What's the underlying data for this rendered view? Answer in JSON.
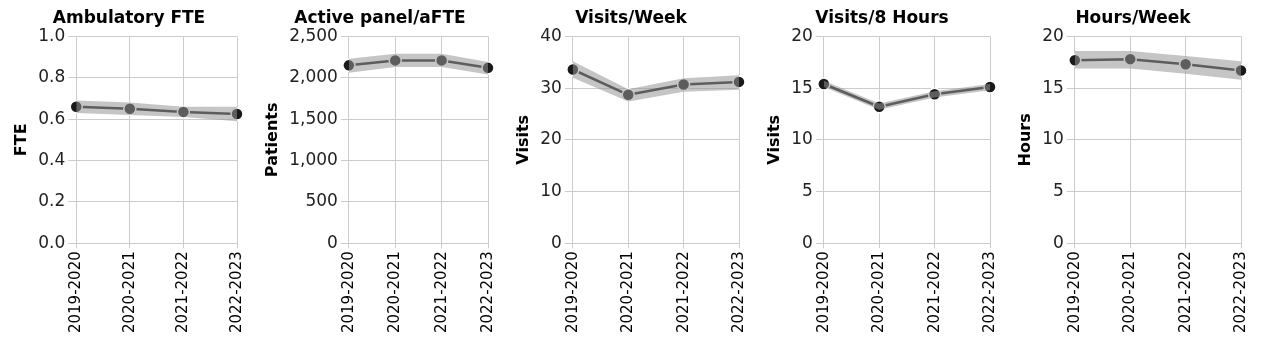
{
  "chart_data": [
    {
      "type": "line",
      "title": "Ambulatory FTE",
      "ylabel": "FTE",
      "categories": [
        "2019-2020",
        "2020-2021",
        "2021-2022",
        "2022-2023"
      ],
      "series": [
        {
          "color": "#1a1a1a",
          "values": [
            0.66,
            0.65,
            0.635,
            0.625
          ],
          "lower": [
            0.63,
            0.62,
            0.61,
            0.59
          ],
          "upper": [
            0.69,
            0.68,
            0.66,
            0.66
          ]
        }
      ],
      "ylim": [
        0,
        1
      ],
      "yticks": [
        {
          "value": 0,
          "label": "0.0"
        },
        {
          "value": 0.2,
          "label": "0.2"
        },
        {
          "value": 0.4,
          "label": "0.4"
        },
        {
          "value": 0.6,
          "label": "0.6"
        },
        {
          "value": 0.8,
          "label": "0.8"
        },
        {
          "value": 1,
          "label": "1.0"
        }
      ],
      "grid": true,
      "legend": false,
      "marker": "circle",
      "line_style": "solid"
    },
    {
      "type": "line",
      "title": "Active panel/aFTE",
      "ylabel": "Patients",
      "categories": [
        "2019-2020",
        "2020-2021",
        "2021-2022",
        "2022-2023"
      ],
      "series": [
        {
          "color": "#1a1a1a",
          "values": [
            2150,
            2210,
            2210,
            2120
          ],
          "lower": [
            2060,
            2130,
            2130,
            2040
          ],
          "upper": [
            2230,
            2290,
            2290,
            2190
          ]
        }
      ],
      "ylim": [
        0,
        2500
      ],
      "yticks": [
        0,
        500,
        {
          "value": 1000,
          "label": "1,000"
        },
        {
          "value": 1500,
          "label": "1,500"
        },
        {
          "value": 2000,
          "label": "2,000"
        },
        {
          "value": 2500,
          "label": "2,500"
        }
      ],
      "grid": true,
      "legend": false,
      "marker": "circle",
      "line_style": "solid"
    },
    {
      "type": "line",
      "title": "Visits/Week",
      "ylabel": "Visits",
      "categories": [
        "2019-2020",
        "2020-2021",
        "2021-2022",
        "2022-2023"
      ],
      "series": [
        {
          "color": "#1a1a1a",
          "values": [
            33.6,
            28.7,
            30.7,
            31.2
          ],
          "lower": [
            32,
            27.4,
            29.3,
            29.7
          ],
          "upper": [
            35.2,
            29.8,
            31.9,
            32.5
          ]
        }
      ],
      "ylim": [
        0,
        40
      ],
      "yticks": [
        0,
        10,
        20,
        30,
        40
      ],
      "grid": true,
      "legend": false,
      "marker": "circle",
      "line_style": "solid"
    },
    {
      "type": "line",
      "title": "Visits/8 Hours",
      "ylabel": "Visits",
      "categories": [
        "2019-2020",
        "2020-2021",
        "2021-2022",
        "2022-2023"
      ],
      "series": [
        {
          "color": "#1a1a1a",
          "values": [
            15.4,
            13.2,
            14.4,
            15.1
          ],
          "lower": [
            15.1,
            12.9,
            14.1,
            14.8
          ],
          "upper": [
            15.7,
            13.5,
            14.7,
            15.4
          ]
        }
      ],
      "ylim": [
        0,
        20
      ],
      "yticks": [
        0,
        5,
        10,
        15,
        20
      ],
      "grid": true,
      "legend": false,
      "marker": "circle",
      "line_style": "solid"
    },
    {
      "type": "line",
      "title": "Hours/Week",
      "ylabel": "Hours",
      "categories": [
        "2019-2020",
        "2020-2021",
        "2021-2022",
        "2022-2023"
      ],
      "series": [
        {
          "color": "#1a1a1a",
          "values": [
            17.7,
            17.8,
            17.3,
            16.7
          ],
          "lower": [
            16.9,
            16.9,
            16.4,
            15.8
          ],
          "upper": [
            18.6,
            18.6,
            18.1,
            17.6
          ]
        }
      ],
      "ylim": [
        0,
        20
      ],
      "yticks": [
        0,
        5,
        10,
        15,
        20
      ],
      "grid": true,
      "legend": false,
      "marker": "circle",
      "line_style": "solid"
    }
  ]
}
